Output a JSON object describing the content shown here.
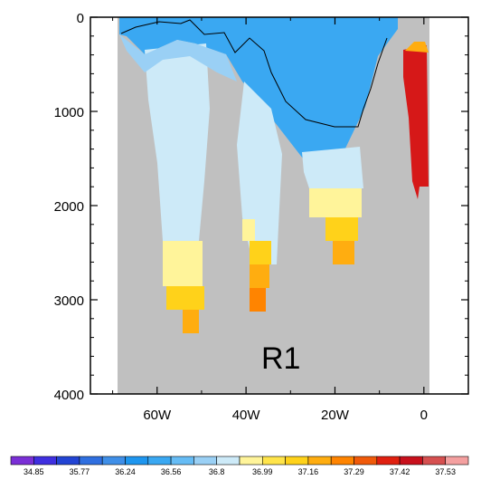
{
  "chart_data": {
    "type": "heatmap",
    "title": "",
    "panel_label": "R1",
    "xlabel": "",
    "ylabel": "",
    "x_ticks": [
      {
        "value": -60,
        "label": "60W"
      },
      {
        "value": -40,
        "label": "40W"
      },
      {
        "value": -20,
        "label": "20W"
      },
      {
        "value": 0,
        "label": "0"
      }
    ],
    "y_ticks": [
      {
        "value": 0,
        "label": "0"
      },
      {
        "value": 1000,
        "label": "1000"
      },
      {
        "value": 2000,
        "label": "2000"
      },
      {
        "value": 3000,
        "label": "3000"
      },
      {
        "value": 4000,
        "label": "4000"
      }
    ],
    "xlim": [
      -75,
      10
    ],
    "ylim": [
      0,
      4000
    ],
    "y_inverted": true,
    "bathymetry_color": "#c0c0c0",
    "colorbar": {
      "labels": [
        "34.85",
        "35.77",
        "36.24",
        "36.56",
        "36.8",
        "36.99",
        "37.16",
        "37.29",
        "37.42",
        "37.53"
      ],
      "colors": [
        "#7a2fd6",
        "#3f2fe0",
        "#2244d4",
        "#2f6fe0",
        "#3f8fe8",
        "#1e96ef",
        "#3aa8f2",
        "#66bcf5",
        "#9ad0f5",
        "#cdeaf8",
        "#fff49a",
        "#ffe44a",
        "#ffd21a",
        "#ffad10",
        "#ff8400",
        "#f05a0a",
        "#e02010",
        "#c8101c",
        "#d65050",
        "#f4a0a0"
      ]
    },
    "approx_field": [
      {
        "x_range": [
          -68,
          -49
        ],
        "depth_range": [
          0,
          300
        ],
        "value": 36.9
      },
      {
        "x_range": [
          -64,
          -50
        ],
        "depth_range": [
          300,
          2400
        ],
        "value": 36.9
      },
      {
        "x_range": [
          -56,
          -50
        ],
        "depth_range": [
          2400,
          2900
        ],
        "value": 37.05
      },
      {
        "x_range": [
          -55,
          -51
        ],
        "depth_range": [
          2900,
          3300
        ],
        "value": 37.16
      },
      {
        "x_range": [
          -42,
          -30
        ],
        "depth_range": [
          0,
          2600
        ],
        "value": 36.9
      },
      {
        "x_range": [
          -38,
          -35
        ],
        "depth_range": [
          2600,
          3100
        ],
        "value": 37.35
      },
      {
        "x_range": [
          -25,
          -14
        ],
        "depth_range": [
          0,
          1800
        ],
        "value": 36.9
      },
      {
        "x_range": [
          -22,
          -15
        ],
        "depth_range": [
          1800,
          2600
        ],
        "value": 37.1
      },
      {
        "x_range": [
          -5,
          0
        ],
        "depth_range": [
          300,
          1900
        ],
        "value": 37.6
      }
    ],
    "contour_value": "36.99"
  }
}
